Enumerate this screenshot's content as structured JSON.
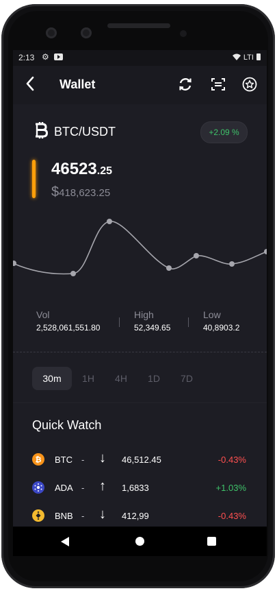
{
  "status_bar": {
    "time": "2:13",
    "network": "LTI"
  },
  "app_bar": {
    "title": "Wallet"
  },
  "pair": {
    "name": "BTC/USDT",
    "change": "+2.09 %"
  },
  "price": {
    "main": "46523",
    "decimal": ".25",
    "currency_symbol": "$",
    "usd": "418,623.25"
  },
  "stats": [
    {
      "label": "Vol",
      "value": "2,528,061,551.80"
    },
    {
      "label": "High",
      "value": "52,349.65"
    },
    {
      "label": "Low",
      "value": "40,8903.2"
    }
  ],
  "ranges": [
    "30m",
    "1H",
    "4H",
    "1D",
    "7D"
  ],
  "active_range": "30m",
  "quick_watch": {
    "title": "Quick Watch",
    "items": [
      {
        "symbol": "BTC",
        "dash": "-",
        "direction": "↓",
        "price": "46,512.45",
        "change": "-0.43%",
        "coin_color": "#f7931a"
      },
      {
        "symbol": "ADA",
        "dash": "-",
        "direction": "↑",
        "price": "1,6833",
        "change": "+1.03%",
        "coin_color": "#3b47c4"
      },
      {
        "symbol": "BNB",
        "dash": "-",
        "direction": "↓",
        "price": "412,99",
        "change": "-0.43%",
        "coin_color": "#f3ba2f"
      }
    ]
  },
  "colors": {
    "accent": "#ff9f0a",
    "positive": "#3fc36a",
    "negative": "#ff5050",
    "background": "#1d1d24"
  },
  "icons": [
    "back-arrow-icon",
    "refresh-icon",
    "scan-icon",
    "star-circle-icon",
    "bitcoin-icon",
    "settings-gear-icon",
    "youtube-icon"
  ]
}
